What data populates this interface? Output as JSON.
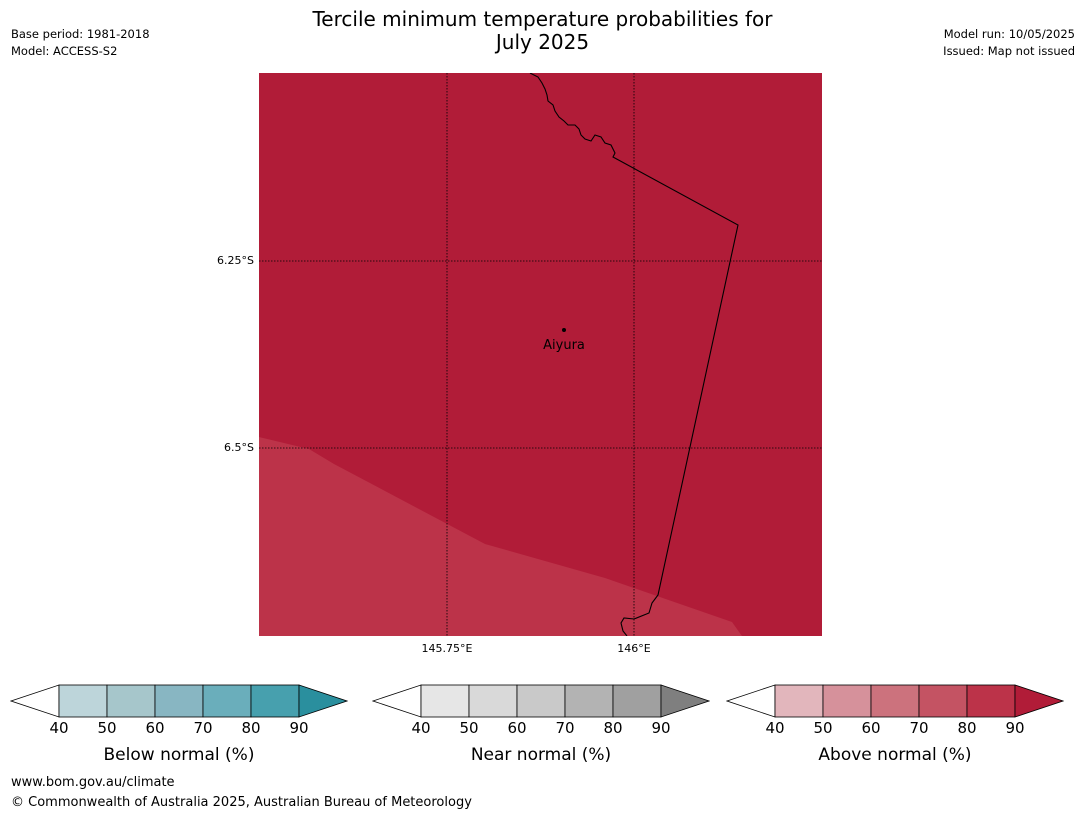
{
  "title_line1": "Tercile minimum temperature probabilities for",
  "title_line2": "July 2025",
  "meta_left": [
    "Base period: 1981-2018",
    "Model: ACCESS-S2"
  ],
  "meta_right": [
    "Model run: 10/05/2025",
    "Issued: Map not issued"
  ],
  "map": {
    "lat_labels": [
      "6.25°S",
      "6.5°S"
    ],
    "lon_labels": [
      "145.75°E",
      "146°E"
    ],
    "place": "Aiyura",
    "fill_main": "#b11c38",
    "fill_lower": "#bc3349"
  },
  "colorbars": [
    {
      "title": "Below normal (%)",
      "ticks": [
        "40",
        "50",
        "60",
        "70",
        "80",
        "90"
      ],
      "colors": [
        "#ffffff",
        "#bdd5da",
        "#a6c6cb",
        "#88b6c2",
        "#6aaebb",
        "#47a0ae",
        "#2a8f9e"
      ]
    },
    {
      "title": "Near normal (%)",
      "ticks": [
        "40",
        "50",
        "60",
        "70",
        "80",
        "90"
      ],
      "colors": [
        "#ffffff",
        "#e6e6e6",
        "#d9d9d9",
        "#c9c9c9",
        "#b3b3b3",
        "#a0a0a0",
        "#7f7f7f"
      ]
    },
    {
      "title": "Above normal (%)",
      "ticks": [
        "40",
        "50",
        "60",
        "70",
        "80",
        "90"
      ],
      "colors": [
        "#ffffff",
        "#e2b6bc",
        "#d6919b",
        "#cc727d",
        "#c45363",
        "#bc3349",
        "#b11c38"
      ]
    }
  ],
  "footer": [
    "www.bom.gov.au/climate",
    "© Commonwealth of Australia 2025, Australian Bureau of Meteorology"
  ]
}
